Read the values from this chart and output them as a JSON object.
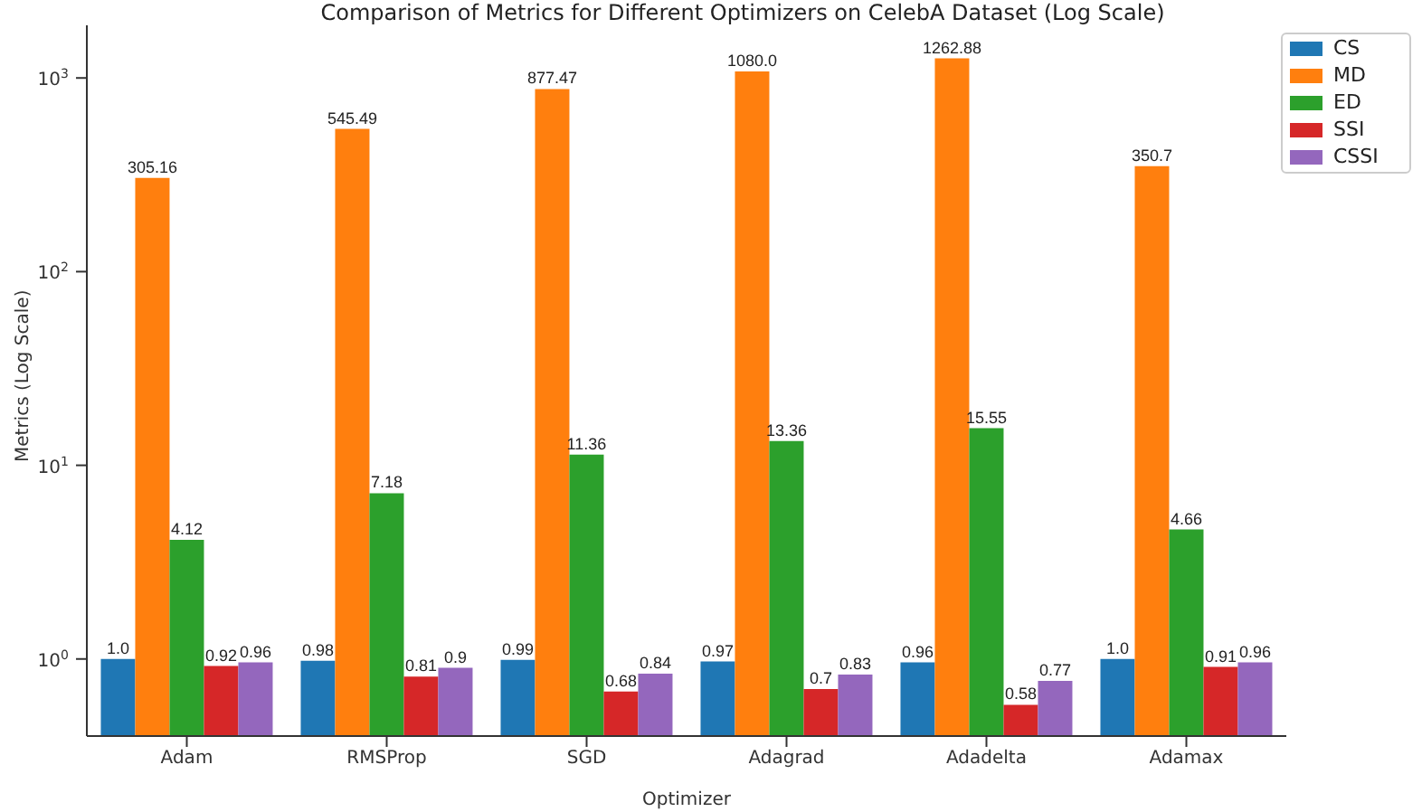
{
  "chart_data": {
    "type": "bar",
    "title": "Comparison of Metrics for Different Optimizers on CelebA Dataset (Log Scale)",
    "xlabel": "Optimizer",
    "ylabel": "Metrics (Log Scale)",
    "categories": [
      "Adam",
      "RMSProp",
      "SGD",
      "Adagrad",
      "Adadelta",
      "Adamax"
    ],
    "series": [
      {
        "name": "CS",
        "color": "#1f77b4",
        "values": [
          1.0,
          0.98,
          0.99,
          0.97,
          0.96,
          1.0
        ],
        "value_labels": [
          "1.0",
          "0.98",
          "0.99",
          "0.97",
          "0.96",
          "1.0"
        ]
      },
      {
        "name": "MD",
        "color": "#ff7f0e",
        "values": [
          305.16,
          545.49,
          877.47,
          1080.0,
          1262.88,
          350.7
        ],
        "value_labels": [
          "305.16",
          "545.49",
          "877.47",
          "1080.0",
          "1262.88",
          "350.7"
        ]
      },
      {
        "name": "ED",
        "color": "#2ca02c",
        "values": [
          4.12,
          7.18,
          11.36,
          13.36,
          15.55,
          4.66
        ],
        "value_labels": [
          "4.12",
          "7.18",
          "11.36",
          "13.36",
          "15.55",
          "4.66"
        ]
      },
      {
        "name": "SSI",
        "color": "#d62728",
        "values": [
          0.92,
          0.81,
          0.68,
          0.7,
          0.58,
          0.91
        ],
        "value_labels": [
          "0.92",
          "0.81",
          "0.68",
          "0.7",
          "0.58",
          "0.91"
        ]
      },
      {
        "name": "CSSI",
        "color": "#9467bd",
        "values": [
          0.96,
          0.9,
          0.84,
          0.83,
          0.77,
          0.96
        ],
        "value_labels": [
          "0.96",
          "0.9",
          "0.84",
          "0.83",
          "0.77",
          "0.96"
        ]
      }
    ],
    "log": "y",
    "ylim": [
      0.4,
      1870
    ],
    "yticks": [
      {
        "value": 1,
        "label": "10$^{0}$"
      },
      {
        "value": 10,
        "label": "10$^{1}$"
      },
      {
        "value": 100,
        "label": "10$^{2}$"
      },
      {
        "value": 1000,
        "label": "10$^{3}$"
      }
    ],
    "legend": "top right",
    "grid": false
  }
}
